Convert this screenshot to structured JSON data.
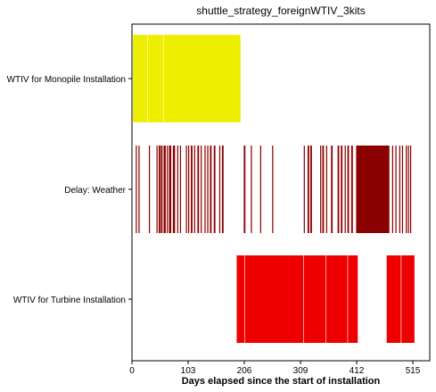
{
  "chart_data": {
    "type": "bar",
    "orientation": "horizontal",
    "title": "shuttle_strategy_foreignWTIV_3kits",
    "xlabel": "Days elapsed since the start of installation",
    "ylabel": "",
    "xlim": [
      0,
      546
    ],
    "xticks": [
      0,
      103,
      206,
      309,
      412,
      515
    ],
    "grid": false,
    "categories": [
      "WTIV for Monopile Installation",
      "Delay: Weather",
      "WTIV for Turbine Installation"
    ],
    "colors": [
      "#eeee00",
      "#8b0000",
      "#ee0000"
    ],
    "series": [
      {
        "segments": [
          [
            2,
            28
          ],
          [
            29,
            57
          ],
          [
            58,
            199
          ]
        ]
      },
      {
        "segments": [
          [
            7,
            9
          ],
          [
            12,
            14
          ],
          [
            31,
            33
          ],
          [
            45,
            47
          ],
          [
            49,
            52
          ],
          [
            53,
            56
          ],
          [
            58,
            62
          ],
          [
            64,
            66
          ],
          [
            68,
            72
          ],
          [
            75,
            79
          ],
          [
            83,
            85
          ],
          [
            88,
            90
          ],
          [
            99,
            101
          ],
          [
            103,
            105
          ],
          [
            108,
            111
          ],
          [
            114,
            116
          ],
          [
            120,
            123
          ],
          [
            126,
            128
          ],
          [
            133,
            135
          ],
          [
            138,
            140
          ],
          [
            143,
            146
          ],
          [
            150,
            153
          ],
          [
            160,
            162
          ],
          [
            165,
            168
          ],
          [
            205,
            208
          ],
          [
            218,
            220
          ],
          [
            235,
            237
          ],
          [
            257,
            259
          ],
          [
            315,
            317
          ],
          [
            322,
            325
          ],
          [
            327,
            330
          ],
          [
            345,
            347
          ],
          [
            349,
            352
          ],
          [
            356,
            358
          ],
          [
            365,
            368
          ],
          [
            377,
            380
          ],
          [
            383,
            386
          ],
          [
            390,
            392
          ],
          [
            395,
            398
          ],
          [
            402,
            405
          ],
          [
            411,
            472
          ],
          [
            477,
            479
          ],
          [
            483,
            485
          ],
          [
            490,
            492
          ],
          [
            495,
            497
          ],
          [
            502,
            504
          ],
          [
            506,
            508
          ],
          [
            510,
            512
          ]
        ]
      },
      {
        "segments": [
          [
            192,
            206
          ],
          [
            207,
            314
          ],
          [
            315,
            355
          ],
          [
            356,
            395
          ],
          [
            396,
            414
          ],
          [
            467,
            493
          ],
          [
            494,
            518
          ]
        ]
      }
    ]
  }
}
